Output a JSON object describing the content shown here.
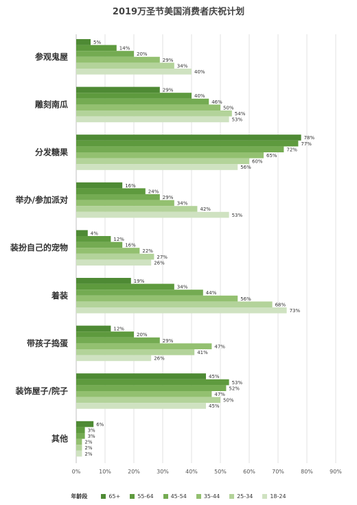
{
  "chart_data": {
    "type": "bar",
    "orientation": "horizontal",
    "title": "2019万圣节美国消费者庆祝计划",
    "categories": [
      "参观鬼屋",
      "雕刻南瓜",
      "分发糖果",
      "举办/参加派对",
      "装扮自己的宠物",
      "着装",
      "带孩子捣蛋",
      "装饰屋子/院子",
      "其他"
    ],
    "series": [
      {
        "name": "65+",
        "color": "#4e8a34",
        "values": [
          5,
          29,
          78,
          16,
          4,
          19,
          12,
          45,
          6
        ]
      },
      {
        "name": "55-64",
        "color": "#5e9a3e",
        "values": [
          14,
          40,
          77,
          24,
          12,
          34,
          20,
          53,
          3
        ]
      },
      {
        "name": "45-54",
        "color": "#74ab52",
        "values": [
          20,
          46,
          72,
          29,
          16,
          44,
          29,
          52,
          3
        ]
      },
      {
        "name": "35-44",
        "color": "#93c070",
        "values": [
          29,
          50,
          65,
          34,
          22,
          56,
          47,
          47,
          2
        ]
      },
      {
        "name": "25-34",
        "color": "#b3d39a",
        "values": [
          34,
          54,
          60,
          42,
          27,
          68,
          41,
          50,
          2
        ]
      },
      {
        "name": "18-24",
        "color": "#cfe2c1",
        "values": [
          40,
          53,
          56,
          53,
          26,
          73,
          26,
          45,
          2
        ]
      }
    ],
    "value_suffix": "%",
    "xlim": [
      0,
      90
    ],
    "xticks": [
      "0%",
      "10%",
      "20%",
      "30%",
      "40%",
      "50%",
      "60%",
      "70%",
      "80%",
      "90%"
    ],
    "grid": true,
    "legend_title": "年龄段",
    "legend_position": "bottom"
  }
}
